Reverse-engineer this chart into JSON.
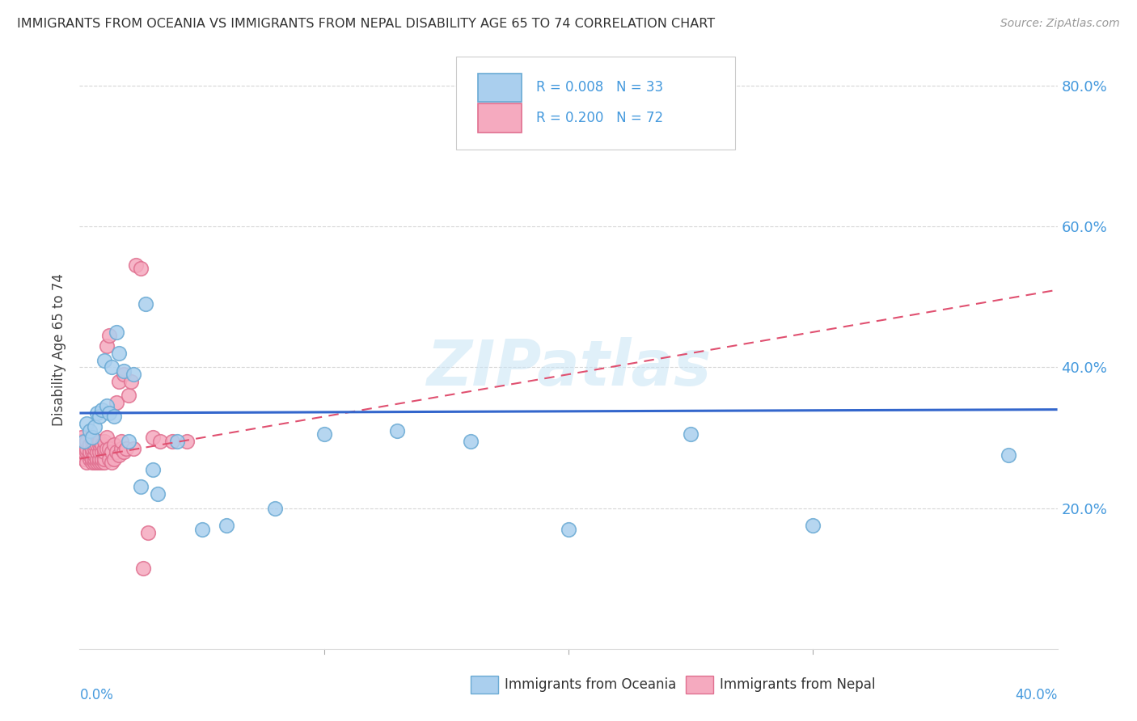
{
  "title": "IMMIGRANTS FROM OCEANIA VS IMMIGRANTS FROM NEPAL DISABILITY AGE 65 TO 74 CORRELATION CHART",
  "source": "Source: ZipAtlas.com",
  "ylabel": "Disability Age 65 to 74",
  "xlim": [
    0.0,
    0.4
  ],
  "ylim": [
    0.0,
    0.85
  ],
  "y_ticks": [
    0.2,
    0.4,
    0.6,
    0.8
  ],
  "y_tick_labels": [
    "20.0%",
    "40.0%",
    "60.0%",
    "80.0%"
  ],
  "oceania_color": "#aacfee",
  "nepal_color": "#f5aabf",
  "oceania_edge": "#6aaad4",
  "nepal_edge": "#e07090",
  "trend_oceania_color": "#3366cc",
  "trend_nepal_color": "#e05070",
  "R_oceania": 0.008,
  "N_oceania": 33,
  "R_nepal": 0.2,
  "N_nepal": 72,
  "legend_label_oceania": "Immigrants from Oceania",
  "legend_label_nepal": "Immigrants from Nepal",
  "watermark": "ZIPatlas",
  "background_color": "#ffffff",
  "grid_color": "#cccccc",
  "axis_color": "#4499dd",
  "oceania_trend_y0": 0.335,
  "oceania_trend_y1": 0.34,
  "nepal_trend_y0": 0.27,
  "nepal_trend_y1": 0.51,
  "oceania_scatter_x": [
    0.002,
    0.003,
    0.004,
    0.005,
    0.006,
    0.007,
    0.008,
    0.009,
    0.01,
    0.011,
    0.012,
    0.013,
    0.014,
    0.015,
    0.016,
    0.018,
    0.02,
    0.022,
    0.025,
    0.027,
    0.03,
    0.032,
    0.04,
    0.05,
    0.06,
    0.08,
    0.1,
    0.13,
    0.16,
    0.2,
    0.25,
    0.3,
    0.38
  ],
  "oceania_scatter_y": [
    0.295,
    0.32,
    0.31,
    0.3,
    0.315,
    0.335,
    0.33,
    0.34,
    0.41,
    0.345,
    0.335,
    0.4,
    0.33,
    0.45,
    0.42,
    0.395,
    0.295,
    0.39,
    0.23,
    0.49,
    0.255,
    0.22,
    0.295,
    0.17,
    0.175,
    0.2,
    0.305,
    0.31,
    0.295,
    0.17,
    0.305,
    0.175,
    0.275
  ],
  "nepal_scatter_x": [
    0.001,
    0.001,
    0.001,
    0.002,
    0.002,
    0.002,
    0.003,
    0.003,
    0.003,
    0.003,
    0.004,
    0.004,
    0.004,
    0.004,
    0.005,
    0.005,
    0.005,
    0.005,
    0.005,
    0.006,
    0.006,
    0.006,
    0.006,
    0.006,
    0.007,
    0.007,
    0.007,
    0.007,
    0.008,
    0.008,
    0.008,
    0.008,
    0.008,
    0.009,
    0.009,
    0.009,
    0.009,
    0.01,
    0.01,
    0.01,
    0.01,
    0.01,
    0.011,
    0.011,
    0.011,
    0.012,
    0.012,
    0.012,
    0.013,
    0.013,
    0.014,
    0.014,
    0.015,
    0.015,
    0.016,
    0.016,
    0.017,
    0.017,
    0.018,
    0.018,
    0.019,
    0.02,
    0.021,
    0.022,
    0.023,
    0.025,
    0.026,
    0.028,
    0.03,
    0.033,
    0.038,
    0.044
  ],
  "nepal_scatter_y": [
    0.285,
    0.295,
    0.3,
    0.27,
    0.28,
    0.29,
    0.265,
    0.28,
    0.285,
    0.295,
    0.27,
    0.275,
    0.28,
    0.29,
    0.265,
    0.27,
    0.28,
    0.285,
    0.295,
    0.265,
    0.27,
    0.275,
    0.285,
    0.29,
    0.265,
    0.27,
    0.28,
    0.29,
    0.265,
    0.27,
    0.28,
    0.29,
    0.295,
    0.265,
    0.27,
    0.28,
    0.29,
    0.265,
    0.27,
    0.28,
    0.285,
    0.295,
    0.285,
    0.3,
    0.43,
    0.27,
    0.285,
    0.445,
    0.265,
    0.28,
    0.27,
    0.29,
    0.28,
    0.35,
    0.275,
    0.38,
    0.285,
    0.295,
    0.28,
    0.39,
    0.285,
    0.36,
    0.38,
    0.285,
    0.545,
    0.54,
    0.115,
    0.165,
    0.3,
    0.295,
    0.295,
    0.295
  ]
}
